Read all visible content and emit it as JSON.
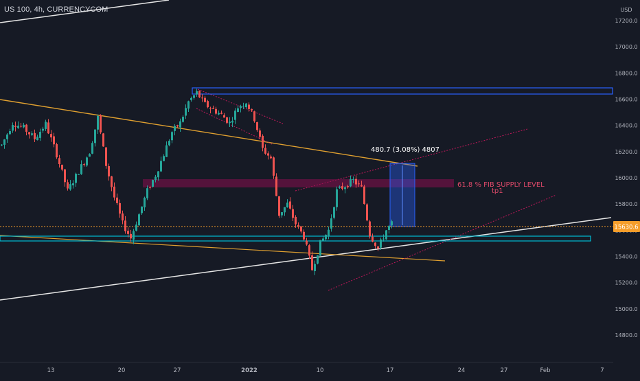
{
  "chart": {
    "symbol_label": "US 100, 4h, CURRENCYCOM",
    "currency": "USD",
    "price_tag": "15630.6",
    "measure_label": "480.7 (3.08%) 4807",
    "annotation_line1": "61.8 % FIB SUPPLY LEVEL",
    "annotation_line2": "tp1"
  },
  "colors": {
    "background": "#161a25",
    "up_candle": "#26a69a",
    "down_candle": "#ef5350",
    "axis_text": "#b2b5be",
    "trendline_orange": "#e0a030",
    "trendline_white": "#e6e6e6",
    "channel_red": "#c2185b",
    "zone_blue": "#2962ff",
    "zone_cyan": "#00bcd4",
    "fib_zone": "#880e4f",
    "price_tag_bg": "#f59d2a",
    "annotation_text": "#e04a6a"
  },
  "chart_data": {
    "type": "candlestick",
    "title": "US 100, 4h, CURRENCYCOM",
    "y_unit": "USD",
    "y_ticks": [
      17200.0,
      17000.0,
      16800.0,
      16600.0,
      16400.0,
      16200.0,
      16000.0,
      15800.0,
      15600.0,
      15400.0,
      15200.0,
      15000.0,
      14800.0
    ],
    "x_ticks": [
      "13",
      "20",
      "27",
      "2022",
      "10",
      "17",
      "24",
      "27",
      "Feb",
      "7"
    ],
    "ylim": [
      14600,
      17300
    ],
    "grid": false,
    "last_price": 15630.6,
    "approx_path": [
      [
        0,
        16250
      ],
      [
        4,
        16420
      ],
      [
        8,
        16380
      ],
      [
        12,
        16300
      ],
      [
        16,
        16410
      ],
      [
        20,
        16180
      ],
      [
        24,
        15900
      ],
      [
        28,
        16050
      ],
      [
        32,
        16200
      ],
      [
        35,
        16460
      ],
      [
        38,
        16100
      ],
      [
        41,
        15850
      ],
      [
        44,
        15650
      ],
      [
        47,
        15540
      ],
      [
        50,
        15720
      ],
      [
        53,
        15900
      ],
      [
        56,
        16020
      ],
      [
        59,
        16180
      ],
      [
        62,
        16350
      ],
      [
        65,
        16420
      ],
      [
        68,
        16580
      ],
      [
        71,
        16650
      ],
      [
        74,
        16560
      ],
      [
        77,
        16520
      ],
      [
        80,
        16480
      ],
      [
        83,
        16420
      ],
      [
        86,
        16540
      ],
      [
        89,
        16580
      ],
      [
        92,
        16450
      ],
      [
        95,
        16220
      ],
      [
        98,
        16150
      ],
      [
        101,
        15720
      ],
      [
        104,
        15800
      ],
      [
        107,
        15650
      ],
      [
        110,
        15550
      ],
      [
        113,
        15300
      ],
      [
        116,
        15500
      ],
      [
        119,
        15600
      ],
      [
        122,
        15900
      ],
      [
        125,
        15940
      ],
      [
        128,
        15980
      ],
      [
        131,
        15920
      ],
      [
        134,
        15570
      ],
      [
        137,
        15460
      ],
      [
        140,
        15600
      ],
      [
        142,
        15650
      ]
    ],
    "zones": [
      {
        "label": "",
        "top": 16670,
        "bottom": 16620
      },
      {
        "label": "61.8 % FIB SUPPLY LEVEL",
        "top": 15990,
        "bottom": 15930
      },
      {
        "label": "",
        "top": 15545,
        "bottom": 15510
      }
    ],
    "measure": {
      "label": "480.7 (3.08%) 4807",
      "from": 15630.6,
      "to": 16111.3
    }
  }
}
